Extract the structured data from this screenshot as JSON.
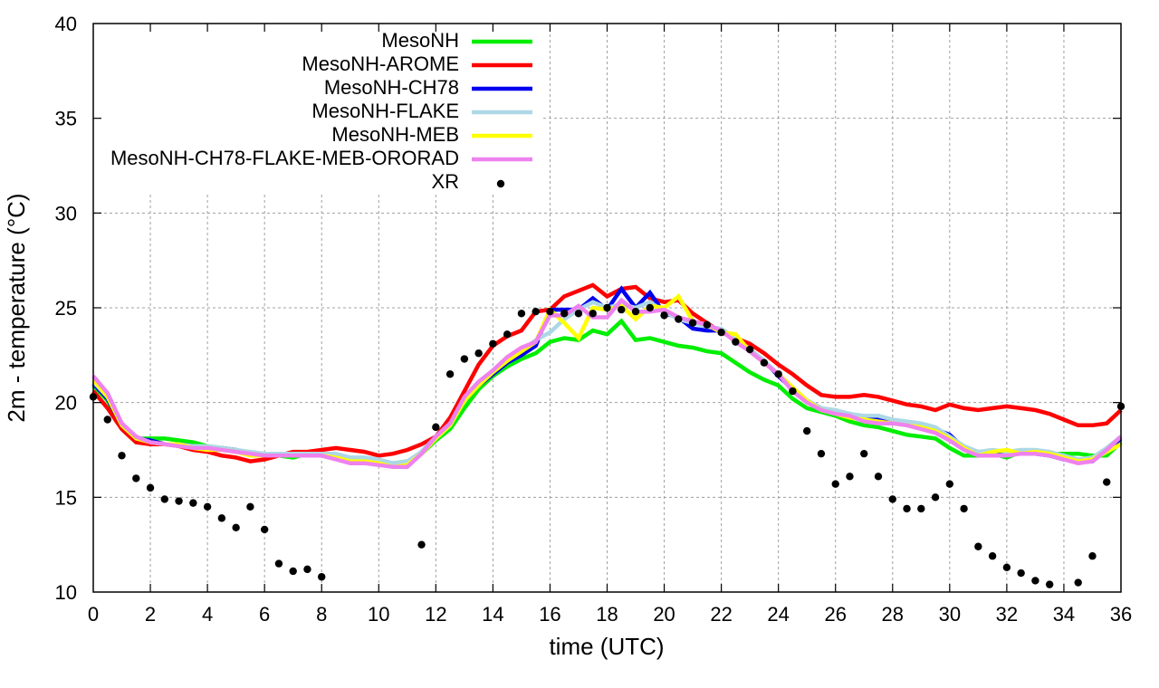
{
  "chart_data": {
    "type": "line",
    "title": "",
    "xlabel": "time (UTC)",
    "ylabel": "2m - temperature (°C)",
    "xlim": [
      0,
      36
    ],
    "ylim": [
      10,
      40
    ],
    "xticks": [
      0,
      2,
      4,
      6,
      8,
      10,
      12,
      14,
      16,
      18,
      20,
      22,
      24,
      26,
      28,
      30,
      32,
      34,
      36
    ],
    "yticks": [
      10,
      15,
      20,
      25,
      30,
      35,
      40
    ],
    "grid": true,
    "legend_position": "top-left",
    "series": [
      {
        "name": "MesoNH",
        "color": "#00ee00",
        "style": "line",
        "x": [
          0,
          0.5,
          1,
          1.5,
          2,
          2.5,
          3,
          3.5,
          4,
          4.5,
          5,
          5.5,
          6,
          6.5,
          7,
          7.5,
          8,
          8.5,
          9,
          9.5,
          10,
          10.5,
          11,
          11.5,
          12,
          12.5,
          13,
          13.5,
          14,
          14.5,
          15,
          15.5,
          16,
          16.5,
          17,
          17.5,
          18,
          18.5,
          19,
          19.5,
          20,
          20.5,
          21,
          21.5,
          22,
          22.5,
          23,
          23.5,
          24,
          24.5,
          25,
          25.5,
          26,
          26.5,
          27,
          27.5,
          28,
          28.5,
          29,
          29.5,
          30,
          30.5,
          31,
          31.5,
          32,
          32.5,
          33,
          33.5,
          34,
          34.5,
          35,
          35.5,
          36
        ],
        "y": [
          20.9,
          20.1,
          18.8,
          18.1,
          18.1,
          18.1,
          18.0,
          17.9,
          17.7,
          17.6,
          17.5,
          17.3,
          17.2,
          17.2,
          17.1,
          17.3,
          17.2,
          17.1,
          17.0,
          17.0,
          16.9,
          16.8,
          16.9,
          17.3,
          18.0,
          18.6,
          19.7,
          20.7,
          21.4,
          21.9,
          22.3,
          22.6,
          23.2,
          23.4,
          23.3,
          23.8,
          23.6,
          24.3,
          23.3,
          23.4,
          23.2,
          23.0,
          22.9,
          22.7,
          22.6,
          22.1,
          21.6,
          21.2,
          20.9,
          20.2,
          19.7,
          19.5,
          19.3,
          19.0,
          18.8,
          18.7,
          18.5,
          18.3,
          18.2,
          18.1,
          17.6,
          17.2,
          17.2,
          17.3,
          17.1,
          17.4,
          17.4,
          17.3,
          17.3,
          17.3,
          17.2,
          17.2,
          17.9
        ]
      },
      {
        "name": "MesoNH-AROME",
        "color": "#ff0000",
        "style": "line",
        "x": [
          0,
          0.5,
          1,
          1.5,
          2,
          2.5,
          3,
          3.5,
          4,
          4.5,
          5,
          5.5,
          6,
          6.5,
          7,
          7.5,
          8,
          8.5,
          9,
          9.5,
          10,
          10.5,
          11,
          11.5,
          12,
          12.5,
          13,
          13.5,
          14,
          14.5,
          15,
          15.5,
          16,
          16.5,
          17,
          17.5,
          18,
          18.5,
          19,
          19.5,
          20,
          20.5,
          21,
          21.5,
          22,
          22.5,
          23,
          23.5,
          24,
          24.5,
          25,
          25.5,
          26,
          26.5,
          27,
          27.5,
          28,
          28.5,
          29,
          29.5,
          30,
          30.5,
          31,
          31.5,
          32,
          32.5,
          33,
          33.5,
          34,
          34.5,
          35,
          35.5,
          36
        ],
        "y": [
          20.6,
          19.7,
          18.6,
          17.9,
          17.8,
          17.8,
          17.7,
          17.5,
          17.4,
          17.2,
          17.1,
          16.9,
          17.0,
          17.2,
          17.4,
          17.4,
          17.5,
          17.6,
          17.5,
          17.4,
          17.2,
          17.3,
          17.5,
          17.8,
          18.2,
          19.2,
          20.6,
          22.0,
          23.0,
          23.5,
          23.8,
          24.8,
          24.9,
          25.6,
          25.9,
          26.2,
          25.6,
          26.0,
          26.1,
          25.5,
          25.3,
          25.4,
          24.7,
          24.2,
          23.7,
          23.4,
          23.1,
          22.6,
          22.0,
          21.5,
          20.9,
          20.4,
          20.3,
          20.3,
          20.4,
          20.3,
          20.1,
          19.9,
          19.8,
          19.6,
          19.9,
          19.7,
          19.6,
          19.7,
          19.8,
          19.7,
          19.6,
          19.4,
          19.1,
          18.8,
          18.8,
          18.9,
          19.6
        ]
      },
      {
        "name": "MesoNH-CH78",
        "color": "#0000ee",
        "style": "line",
        "x": [
          0,
          0.5,
          1,
          1.5,
          2,
          2.5,
          3,
          3.5,
          4,
          4.5,
          5,
          5.5,
          6,
          6.5,
          7,
          7.5,
          8,
          8.5,
          9,
          9.5,
          10,
          10.5,
          11,
          11.5,
          12,
          12.5,
          13,
          13.5,
          14,
          14.5,
          15,
          15.5,
          16,
          16.5,
          17,
          17.5,
          18,
          18.5,
          19,
          19.5,
          20,
          20.5,
          21,
          21.5,
          22,
          22.5,
          23,
          23.5,
          24,
          24.5,
          25,
          25.5,
          26,
          26.5,
          27,
          27.5,
          28,
          28.5,
          29,
          29.5,
          30,
          30.5,
          31,
          31.5,
          32,
          32.5,
          33,
          33.5,
          34,
          34.5,
          35,
          35.5,
          36
        ],
        "y": [
          21.0,
          20.2,
          18.8,
          18.1,
          18.0,
          17.8,
          17.8,
          17.7,
          17.6,
          17.6,
          17.5,
          17.3,
          17.3,
          17.3,
          17.3,
          17.3,
          17.3,
          17.2,
          17.0,
          17.0,
          16.9,
          16.7,
          16.8,
          17.4,
          18.2,
          18.9,
          20.1,
          20.9,
          21.5,
          22.1,
          22.5,
          23.0,
          24.9,
          24.9,
          24.9,
          25.5,
          24.9,
          26.0,
          25.0,
          25.8,
          24.7,
          24.5,
          23.9,
          23.8,
          23.8,
          23.3,
          22.8,
          22.2,
          21.4,
          20.7,
          20.1,
          19.7,
          19.5,
          19.4,
          19.2,
          19.1,
          19.0,
          18.9,
          18.8,
          18.6,
          18.3,
          17.6,
          17.2,
          17.3,
          17.3,
          17.3,
          17.3,
          17.2,
          17.0,
          16.9,
          16.9,
          17.5,
          18.1
        ]
      },
      {
        "name": "MesoNH-FLAKE",
        "color": "#add8e6",
        "style": "line",
        "x": [
          0,
          0.5,
          1,
          1.5,
          2,
          2.5,
          3,
          3.5,
          4,
          4.5,
          5,
          5.5,
          6,
          6.5,
          7,
          7.5,
          8,
          8.5,
          9,
          9.5,
          10,
          10.5,
          11,
          11.5,
          12,
          12.5,
          13,
          13.5,
          14,
          14.5,
          15,
          15.5,
          16,
          16.5,
          17,
          17.5,
          18,
          18.5,
          19,
          19.5,
          20,
          20.5,
          21,
          21.5,
          22,
          22.5,
          23,
          23.5,
          24,
          24.5,
          25,
          25.5,
          26,
          26.5,
          27,
          27.5,
          28,
          28.5,
          29,
          29.5,
          30,
          30.5,
          31,
          31.5,
          32,
          32.5,
          33,
          33.5,
          34,
          34.5,
          35,
          35.5,
          36
        ],
        "y": [
          21.1,
          20.3,
          18.9,
          18.2,
          17.9,
          17.8,
          17.8,
          17.7,
          17.7,
          17.6,
          17.5,
          17.4,
          17.3,
          17.3,
          17.3,
          17.3,
          17.3,
          17.3,
          17.1,
          17.1,
          17.0,
          16.8,
          16.9,
          17.4,
          18.2,
          18.9,
          20.1,
          21.0,
          21.7,
          22.3,
          22.7,
          23.3,
          23.7,
          24.4,
          24.9,
          25.3,
          25.0,
          25.2,
          25.0,
          25.3,
          24.8,
          24.4,
          24.2,
          24.0,
          23.9,
          23.4,
          22.8,
          22.2,
          21.5,
          20.8,
          20.1,
          19.7,
          19.6,
          19.4,
          19.3,
          19.3,
          19.1,
          19.0,
          18.9,
          18.7,
          18.2,
          17.7,
          17.4,
          17.5,
          17.4,
          17.5,
          17.5,
          17.4,
          17.2,
          17.0,
          17.1,
          17.6,
          18.2
        ]
      },
      {
        "name": "MesoNH-MEB",
        "color": "#ffff00",
        "style": "line",
        "x": [
          0,
          0.5,
          1,
          1.5,
          2,
          2.5,
          3,
          3.5,
          4,
          4.5,
          5,
          5.5,
          6,
          6.5,
          7,
          7.5,
          8,
          8.5,
          9,
          9.5,
          10,
          10.5,
          11,
          11.5,
          12,
          12.5,
          13,
          13.5,
          14,
          14.5,
          15,
          15.5,
          16,
          16.5,
          17,
          17.5,
          18,
          18.5,
          19,
          19.5,
          20,
          20.5,
          21,
          21.5,
          22,
          22.5,
          23,
          23.5,
          24,
          24.5,
          25,
          25.5,
          26,
          26.5,
          27,
          27.5,
          28,
          28.5,
          29,
          29.5,
          30,
          30.5,
          31,
          31.5,
          32,
          32.5,
          33,
          33.5,
          34,
          34.5,
          35,
          35.5,
          36
        ],
        "y": [
          21.2,
          20.3,
          18.8,
          18.1,
          17.9,
          17.8,
          17.8,
          17.6,
          17.5,
          17.5,
          17.4,
          17.2,
          17.2,
          17.2,
          17.2,
          17.2,
          17.2,
          17.1,
          16.9,
          16.9,
          16.8,
          16.6,
          16.7,
          17.3,
          18.1,
          18.8,
          20.1,
          20.9,
          21.6,
          22.2,
          22.7,
          23.2,
          24.9,
          24.2,
          23.4,
          25.0,
          24.9,
          25.1,
          24.4,
          25.1,
          25.0,
          25.6,
          24.3,
          24.1,
          23.7,
          23.6,
          22.7,
          22.1,
          21.5,
          20.8,
          20.1,
          19.6,
          19.4,
          19.2,
          19.1,
          19.0,
          18.9,
          18.8,
          18.7,
          18.5,
          18.1,
          17.6,
          17.2,
          17.4,
          17.5,
          17.3,
          17.4,
          17.3,
          17.1,
          16.9,
          17.0,
          17.4,
          17.8
        ]
      },
      {
        "name": "MesoNH-CH78-FLAKE-MEB-ORORAD",
        "color": "#ee82ee",
        "style": "line",
        "x": [
          0,
          0.5,
          1,
          1.5,
          2,
          2.5,
          3,
          3.5,
          4,
          4.5,
          5,
          5.5,
          6,
          6.5,
          7,
          7.5,
          8,
          8.5,
          9,
          9.5,
          10,
          10.5,
          11,
          11.5,
          12,
          12.5,
          13,
          13.5,
          14,
          14.5,
          15,
          15.5,
          16,
          16.5,
          17,
          17.5,
          18,
          18.5,
          19,
          19.5,
          20,
          20.5,
          21,
          21.5,
          22,
          22.5,
          23,
          23.5,
          24,
          24.5,
          25,
          25.5,
          26,
          26.5,
          27,
          27.5,
          28,
          28.5,
          29,
          29.5,
          30,
          30.5,
          31,
          31.5,
          32,
          32.5,
          33,
          33.5,
          34,
          34.5,
          35,
          35.5,
          36
        ],
        "y": [
          21.4,
          20.5,
          18.9,
          18.2,
          17.9,
          17.8,
          17.7,
          17.6,
          17.6,
          17.5,
          17.4,
          17.3,
          17.2,
          17.2,
          17.2,
          17.2,
          17.2,
          17.0,
          16.8,
          16.8,
          16.7,
          16.6,
          16.6,
          17.3,
          18.2,
          18.9,
          20.3,
          21.1,
          21.7,
          22.4,
          22.9,
          23.2,
          24.6,
          24.6,
          25.1,
          24.5,
          24.5,
          25.4,
          24.8,
          24.8,
          24.9,
          24.5,
          24.3,
          24.1,
          23.8,
          23.2,
          22.7,
          22.1,
          21.5,
          20.6,
          20.0,
          19.6,
          19.4,
          19.3,
          19.0,
          18.9,
          18.9,
          18.8,
          18.6,
          18.4,
          18.0,
          17.5,
          17.2,
          17.2,
          17.2,
          17.3,
          17.3,
          17.2,
          17.0,
          16.8,
          16.9,
          17.5,
          18.2
        ]
      },
      {
        "name": "XR",
        "color": "#000000",
        "style": "points",
        "x": [
          0,
          0.5,
          1,
          1.5,
          2,
          2.5,
          3,
          3.5,
          4,
          4.5,
          5,
          5.5,
          6,
          6.5,
          7,
          7.5,
          8,
          11.5,
          12,
          12.5,
          13,
          13.5,
          14,
          14.5,
          15,
          15.5,
          16,
          16.5,
          17,
          17.5,
          18,
          18.5,
          19,
          19.5,
          20,
          20.5,
          21,
          21.5,
          22,
          22.5,
          23,
          23.5,
          24,
          24.5,
          25,
          25.5,
          26,
          26.5,
          27,
          27.5,
          28,
          28.5,
          29,
          29.5,
          30,
          30.5,
          31,
          31.5,
          32,
          32.5,
          33,
          33.5,
          34.5,
          35,
          35.5,
          36
        ],
        "y": [
          20.3,
          19.1,
          17.2,
          16.0,
          15.5,
          14.9,
          14.8,
          14.7,
          14.5,
          13.9,
          13.4,
          14.5,
          13.3,
          11.5,
          11.1,
          11.2,
          10.8,
          12.5,
          18.7,
          21.5,
          22.3,
          22.6,
          23.1,
          23.6,
          24.7,
          24.8,
          24.8,
          24.7,
          24.7,
          24.7,
          25.0,
          24.9,
          24.8,
          25.0,
          24.6,
          24.4,
          24.2,
          24.1,
          23.7,
          23.2,
          22.8,
          22.1,
          21.5,
          20.6,
          18.5,
          17.3,
          15.7,
          16.1,
          17.3,
          16.1,
          14.9,
          14.4,
          14.4,
          15.0,
          15.7,
          14.4,
          12.4,
          11.9,
          11.3,
          11.0,
          10.6,
          10.4,
          10.5,
          11.9,
          15.8,
          19.8
        ]
      }
    ]
  }
}
